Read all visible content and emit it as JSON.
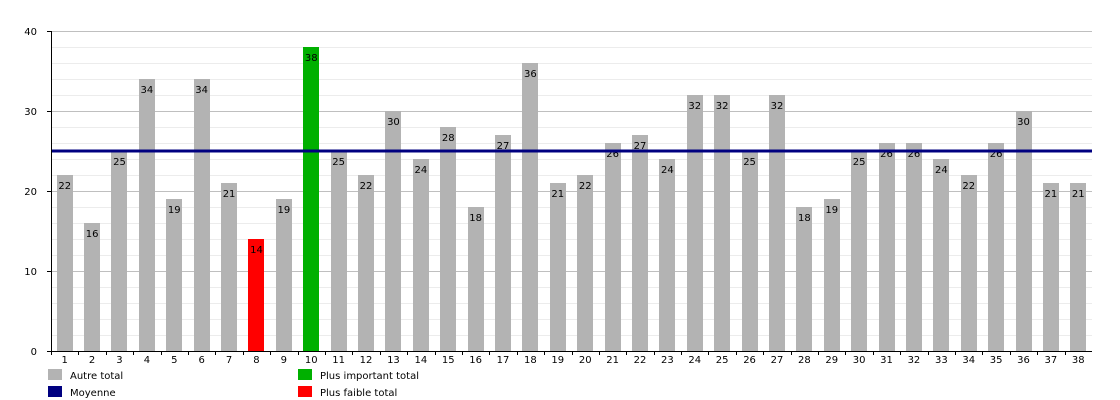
{
  "chart_data": {
    "type": "bar",
    "categories": [
      "1",
      "2",
      "3",
      "4",
      "5",
      "6",
      "7",
      "8",
      "9",
      "10",
      "11",
      "12",
      "13",
      "14",
      "15",
      "16",
      "17",
      "18",
      "19",
      "20",
      "21",
      "22",
      "23",
      "24",
      "25",
      "26",
      "27",
      "28",
      "29",
      "30",
      "31",
      "32",
      "33",
      "34",
      "35",
      "36",
      "37",
      "38"
    ],
    "values": [
      22,
      16,
      25,
      34,
      19,
      34,
      21,
      14,
      19,
      38,
      25,
      22,
      30,
      24,
      28,
      18,
      27,
      36,
      21,
      22,
      26,
      27,
      24,
      32,
      32,
      25,
      32,
      18,
      19,
      25,
      26,
      26,
      24,
      22,
      26,
      30,
      21,
      21
    ],
    "ylim": [
      0,
      40
    ],
    "yticks": [
      0,
      10,
      20,
      30,
      40
    ],
    "grid": true,
    "average": 25,
    "highest_index": 9,
    "lowest_index": 7,
    "legend": {
      "placement": "bottom",
      "entries": [
        {
          "label": "Autre total",
          "color": "#b3b3b3"
        },
        {
          "label": "Moyenne",
          "color": "#000080"
        },
        {
          "label": "Plus important total",
          "color": "#00b000"
        },
        {
          "label": "Plus faible total",
          "color": "#ff0000"
        }
      ]
    },
    "colors": {
      "other": "#b3b3b3",
      "highest": "#00b000",
      "lowest": "#ff0000",
      "average": "#000080"
    }
  }
}
